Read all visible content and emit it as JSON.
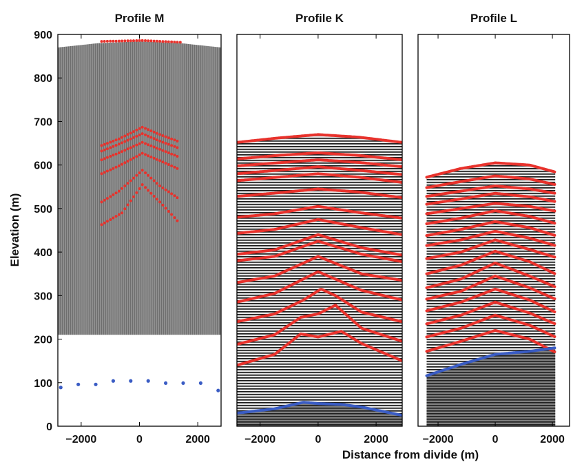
{
  "colors": {
    "layer_trace": "#e8322c",
    "bed_trace": "#3a5cc4",
    "radar_gray": "#8a8a8a",
    "radar_dark": "#1a1a1a",
    "frame": "#000000"
  },
  "figure": {
    "ylabel": "Elevation (m)",
    "xlabel": "Distance from divide (m)"
  },
  "chart_data": [
    {
      "type": "scatter",
      "title": "Profile M",
      "xlim": [
        -2800,
        2800
      ],
      "ylim": [
        0,
        900
      ],
      "xticks": [
        -2000,
        0,
        2000
      ],
      "xtick_labels": [
        "−2000",
        "0",
        "2000"
      ],
      "yticks": [
        0,
        100,
        200,
        300,
        400,
        500,
        600,
        700,
        800,
        900
      ],
      "surface": {
        "x": [
          -2800,
          -1400,
          0,
          1400,
          2800
        ],
        "y": [
          870,
          880,
          884,
          880,
          870
        ]
      },
      "radargram_floor": 210,
      "layers": [
        {
          "x": [
            -1300,
            100,
            1400
          ],
          "y": [
            884,
            886,
            882
          ]
        },
        {
          "x": [
            -1300,
            -700,
            100,
            700,
            1300
          ],
          "y": [
            645,
            660,
            687,
            670,
            655
          ]
        },
        {
          "x": [
            -1300,
            -700,
            100,
            700,
            1300
          ],
          "y": [
            632,
            648,
            672,
            655,
            640
          ]
        },
        {
          "x": [
            -1300,
            -700,
            100,
            700,
            1300
          ],
          "y": [
            612,
            628,
            652,
            636,
            620
          ]
        },
        {
          "x": [
            -1300,
            -700,
            100,
            700,
            1300
          ],
          "y": [
            580,
            598,
            627,
            610,
            592
          ]
        },
        {
          "x": [
            -1300,
            -700,
            100,
            700,
            1300
          ],
          "y": [
            515,
            540,
            588,
            552,
            525
          ]
        },
        {
          "x": [
            -1300,
            -600,
            100,
            700,
            1300
          ],
          "y": [
            463,
            490,
            555,
            515,
            472
          ]
        }
      ],
      "bed_points": {
        "x": [
          -2700,
          -2100,
          -1500,
          -900,
          -300,
          300,
          900,
          1500,
          2100,
          2700
        ],
        "y": [
          89,
          96,
          96,
          104,
          104,
          104,
          99,
          99,
          99,
          82
        ]
      }
    },
    {
      "type": "scatter",
      "title": "Profile K",
      "xlim": [
        -2800,
        2900
      ],
      "ylim": [
        0,
        900
      ],
      "xticks": [
        -2000,
        0,
        2000
      ],
      "xtick_labels": [
        "−2000",
        "0",
        "2000"
      ],
      "surface": {
        "x": [
          -2800,
          -1400,
          0,
          1400,
          2900
        ],
        "y": [
          652,
          662,
          670,
          664,
          652
        ]
      },
      "layers": [
        {
          "x": [
            -2800,
            -1400,
            0,
            1400,
            2900
          ],
          "y": [
            652,
            662,
            670,
            664,
            652
          ]
        },
        {
          "x": [
            -2800,
            -1400,
            0,
            1400,
            2900
          ],
          "y": [
            614,
            622,
            628,
            622,
            612
          ]
        },
        {
          "x": [
            -2800,
            -1400,
            0,
            1400,
            2900
          ],
          "y": [
            598,
            605,
            612,
            606,
            596
          ]
        },
        {
          "x": [
            -2800,
            -1400,
            0,
            1400,
            2900
          ],
          "y": [
            580,
            588,
            596,
            588,
            578
          ]
        },
        {
          "x": [
            -2800,
            -1400,
            0,
            1400,
            2900
          ],
          "y": [
            564,
            572,
            580,
            572,
            560
          ]
        },
        {
          "x": [
            -2800,
            -1400,
            0,
            1400,
            2900
          ],
          "y": [
            528,
            536,
            545,
            538,
            525
          ]
        },
        {
          "x": [
            -2800,
            -1500,
            0,
            1500,
            2900
          ],
          "y": [
            480,
            488,
            505,
            490,
            478
          ]
        },
        {
          "x": [
            -2800,
            -1500,
            0,
            1500,
            2900
          ],
          "y": [
            443,
            452,
            475,
            456,
            440
          ]
        },
        {
          "x": [
            -2800,
            -1500,
            0,
            1500,
            2900
          ],
          "y": [
            395,
            405,
            440,
            410,
            393
          ]
        },
        {
          "x": [
            -2800,
            -1500,
            0,
            1500,
            2900
          ],
          "y": [
            380,
            390,
            425,
            395,
            378
          ]
        },
        {
          "x": [
            -2800,
            -1500,
            0,
            1500,
            2900
          ],
          "y": [
            330,
            345,
            390,
            350,
            335
          ]
        },
        {
          "x": [
            -2800,
            -1500,
            0,
            1500,
            2900
          ],
          "y": [
            285,
            305,
            355,
            312,
            290
          ]
        },
        {
          "x": [
            -2800,
            -1500,
            -500,
            100,
            600,
            1500,
            2900
          ],
          "y": [
            240,
            258,
            290,
            315,
            300,
            262,
            240
          ]
        },
        {
          "x": [
            -2800,
            -1500,
            -600,
            0,
            600,
            1500,
            2900
          ],
          "y": [
            188,
            210,
            250,
            258,
            278,
            225,
            195
          ]
        },
        {
          "x": [
            -2800,
            -1500,
            -600,
            0,
            800,
            1500,
            2900
          ],
          "y": [
            140,
            165,
            212,
            205,
            218,
            190,
            150
          ]
        }
      ],
      "bed": {
        "x": [
          -2800,
          -1500,
          -500,
          0,
          800,
          1500,
          2900
        ],
        "y": [
          30,
          40,
          55,
          52,
          50,
          44,
          25
        ]
      }
    },
    {
      "type": "scatter",
      "title": "Profile L",
      "xlim": [
        -2700,
        2600
      ],
      "ylim": [
        0,
        900
      ],
      "xticks": [
        -2000,
        0,
        2000
      ],
      "xtick_labels": [
        "−2000",
        "0",
        "2000"
      ],
      "surface": {
        "x": [
          -2400,
          -1200,
          0,
          1200,
          2100
        ],
        "y": [
          572,
          592,
          605,
          600,
          584
        ]
      },
      "layers": [
        {
          "x": [
            -2400,
            -1200,
            0,
            1200,
            2100
          ],
          "y": [
            572,
            592,
            605,
            600,
            584
          ]
        },
        {
          "x": [
            -2400,
            -1200,
            0,
            1200,
            2100
          ],
          "y": [
            548,
            562,
            575,
            568,
            555
          ]
        },
        {
          "x": [
            -2400,
            -1200,
            0,
            1200,
            2100
          ],
          "y": [
            528,
            540,
            552,
            545,
            535
          ]
        },
        {
          "x": [
            -2400,
            -1200,
            0,
            1200,
            2100
          ],
          "y": [
            510,
            522,
            535,
            527,
            516
          ]
        },
        {
          "x": [
            -2400,
            -1200,
            0,
            1200,
            2100
          ],
          "y": [
            488,
            500,
            512,
            505,
            494
          ]
        },
        {
          "x": [
            -2400,
            -1200,
            0,
            1200,
            2100
          ],
          "y": [
            465,
            478,
            495,
            482,
            466
          ]
        },
        {
          "x": [
            -2400,
            -1200,
            0,
            1200,
            2100
          ],
          "y": [
            438,
            452,
            470,
            456,
            438
          ]
        },
        {
          "x": [
            -2400,
            -1200,
            0,
            1200,
            2100
          ],
          "y": [
            415,
            428,
            448,
            432,
            415
          ]
        },
        {
          "x": [
            -2400,
            -1200,
            0,
            1200,
            2100
          ],
          "y": [
            385,
            400,
            428,
            406,
            388
          ]
        },
        {
          "x": [
            -2400,
            -1200,
            0,
            1200,
            2100
          ],
          "y": [
            350,
            370,
            402,
            378,
            350
          ]
        },
        {
          "x": [
            -2400,
            -1200,
            0,
            1200,
            2100
          ],
          "y": [
            318,
            338,
            375,
            345,
            320
          ]
        },
        {
          "x": [
            -2400,
            -1200,
            0,
            1200,
            2100
          ],
          "y": [
            292,
            310,
            345,
            318,
            292
          ]
        },
        {
          "x": [
            -2400,
            -1200,
            0,
            1200,
            2100
          ],
          "y": [
            265,
            285,
            315,
            290,
            262
          ]
        },
        {
          "x": [
            -2400,
            -1200,
            0,
            1200,
            2100
          ],
          "y": [
            235,
            255,
            285,
            260,
            235
          ]
        },
        {
          "x": [
            -2400,
            -1200,
            0,
            1200,
            2100
          ],
          "y": [
            205,
            225,
            255,
            232,
            205
          ]
        },
        {
          "x": [
            -2400,
            -1200,
            0,
            1200,
            2100
          ],
          "y": [
            172,
            195,
            220,
            200,
            170
          ]
        }
      ],
      "bed": {
        "x": [
          -2400,
          -1200,
          0,
          1200,
          2100
        ],
        "y": [
          116,
          142,
          165,
          172,
          180
        ]
      }
    }
  ]
}
